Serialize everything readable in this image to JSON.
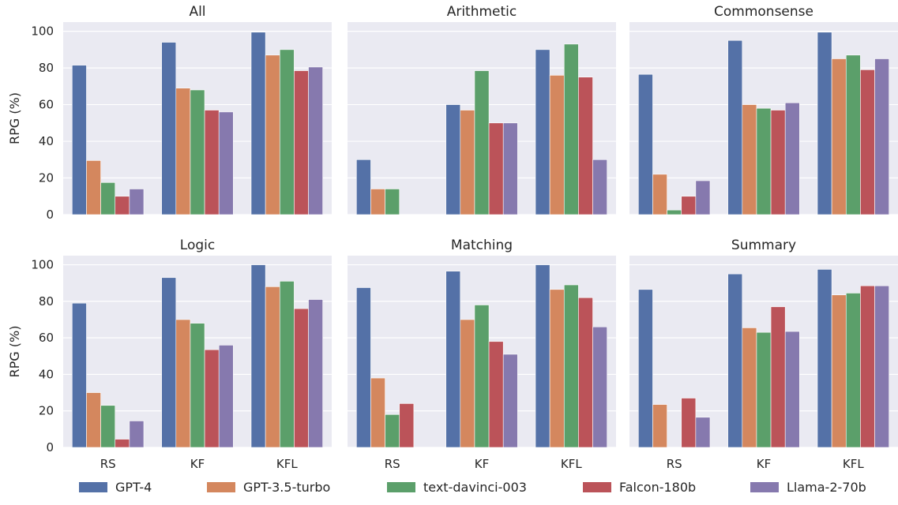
{
  "chart_data": {
    "type": "bar",
    "layout": "2x3 grid of subplots, shared axes",
    "categories": [
      "RS",
      "KF",
      "KFL"
    ],
    "ylabel": "RPG (%)",
    "ylim": [
      0,
      105
    ],
    "yticks": [
      0,
      20,
      40,
      60,
      80,
      100
    ],
    "grid": true,
    "legend_position": "bottom",
    "series_names": [
      "GPT-4",
      "GPT-3.5-turbo",
      "text-davinci-003",
      "Falcon-180b",
      "Llama-2-70b"
    ],
    "colors": {
      "GPT-4": "#5471a7",
      "GPT-3.5-turbo": "#d4875e",
      "text-davinci-003": "#5b9f6a",
      "Falcon-180b": "#bb5359",
      "Llama-2-70b": "#8679ae"
    },
    "panels": [
      {
        "title": "All",
        "series": [
          {
            "name": "GPT-4",
            "values": [
              81.5,
              94,
              99.5
            ]
          },
          {
            "name": "GPT-3.5-turbo",
            "values": [
              29.5,
              69,
              87
            ]
          },
          {
            "name": "text-davinci-003",
            "values": [
              17.5,
              68,
              90
            ]
          },
          {
            "name": "Falcon-180b",
            "values": [
              10,
              57,
              78.5
            ]
          },
          {
            "name": "Llama-2-70b",
            "values": [
              14,
              56,
              80.5
            ]
          }
        ]
      },
      {
        "title": "Arithmetic",
        "series": [
          {
            "name": "GPT-4",
            "values": [
              30,
              60,
              90
            ]
          },
          {
            "name": "GPT-3.5-turbo",
            "values": [
              14,
              57,
              76
            ]
          },
          {
            "name": "text-davinci-003",
            "values": [
              14,
              78.5,
              93
            ]
          },
          {
            "name": "Falcon-180b",
            "values": [
              0,
              50,
              75
            ]
          },
          {
            "name": "Llama-2-70b",
            "values": [
              0,
              50,
              30
            ]
          }
        ]
      },
      {
        "title": "Commonsense",
        "series": [
          {
            "name": "GPT-4",
            "values": [
              76.5,
              95,
              99.5
            ]
          },
          {
            "name": "GPT-3.5-turbo",
            "values": [
              22,
              60,
              85
            ]
          },
          {
            "name": "text-davinci-003",
            "values": [
              2.5,
              58,
              87
            ]
          },
          {
            "name": "Falcon-180b",
            "values": [
              10,
              57,
              79
            ]
          },
          {
            "name": "Llama-2-70b",
            "values": [
              18.5,
              61,
              85
            ]
          }
        ]
      },
      {
        "title": "Logic",
        "series": [
          {
            "name": "GPT-4",
            "values": [
              79,
              93,
              100
            ]
          },
          {
            "name": "GPT-3.5-turbo",
            "values": [
              30,
              70,
              88
            ]
          },
          {
            "name": "text-davinci-003",
            "values": [
              23,
              68,
              91
            ]
          },
          {
            "name": "Falcon-180b",
            "values": [
              4.5,
              53.5,
              76
            ]
          },
          {
            "name": "Llama-2-70b",
            "values": [
              14.5,
              56,
              81
            ]
          }
        ]
      },
      {
        "title": "Matching",
        "series": [
          {
            "name": "GPT-4",
            "values": [
              87.5,
              96.5,
              100
            ]
          },
          {
            "name": "GPT-3.5-turbo",
            "values": [
              38,
              70,
              86.5
            ]
          },
          {
            "name": "text-davinci-003",
            "values": [
              18,
              78,
              89
            ]
          },
          {
            "name": "Falcon-180b",
            "values": [
              24,
              58,
              82
            ]
          },
          {
            "name": "Llama-2-70b",
            "values": [
              0,
              51,
              66
            ]
          }
        ]
      },
      {
        "title": "Summary",
        "series": [
          {
            "name": "GPT-4",
            "values": [
              86.5,
              95,
              97.5
            ]
          },
          {
            "name": "GPT-3.5-turbo",
            "values": [
              23.5,
              65.5,
              83.5
            ]
          },
          {
            "name": "text-davinci-003",
            "values": [
              0,
              63,
              84.5
            ]
          },
          {
            "name": "Falcon-180b",
            "values": [
              27,
              77,
              88.5
            ]
          },
          {
            "name": "Llama-2-70b",
            "values": [
              16.5,
              63.5,
              88.5
            ]
          }
        ]
      }
    ]
  }
}
